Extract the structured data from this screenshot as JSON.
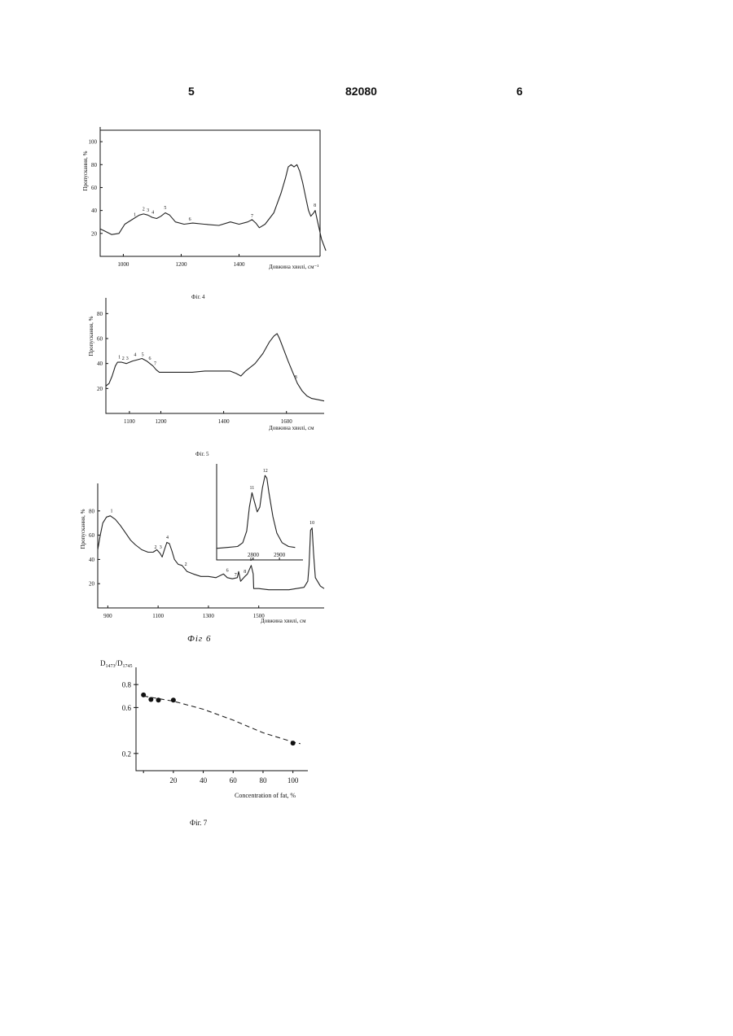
{
  "header": {
    "page_left": "5",
    "patent_number": "82080",
    "page_right": "6"
  },
  "chart_data": [
    {
      "type": "line",
      "caption": "Фіг. 4",
      "ylabel": "Пропускання, %",
      "xlabel": "Довжина хвилі, см⁻¹",
      "xlim": [
        920,
        1680
      ],
      "ylim": [
        0,
        110
      ],
      "xticks": [
        1000,
        1200,
        1400
      ],
      "yticks": [
        20,
        40,
        60,
        80,
        100
      ],
      "series": [
        {
          "points": [
            [
              920,
              24
            ],
            [
              960,
              19
            ],
            [
              985,
              20
            ],
            [
              1005,
              28
            ],
            [
              1030,
              32
            ],
            [
              1055,
              36
            ],
            [
              1070,
              37
            ],
            [
              1085,
              36
            ],
            [
              1100,
              34
            ],
            [
              1115,
              33
            ],
            [
              1130,
              35
            ],
            [
              1145,
              38
            ],
            [
              1160,
              36
            ],
            [
              1180,
              30
            ],
            [
              1210,
              28
            ],
            [
              1240,
              29
            ],
            [
              1280,
              28
            ],
            [
              1330,
              27
            ],
            [
              1370,
              30
            ],
            [
              1400,
              28
            ],
            [
              1430,
              30
            ],
            [
              1445,
              32
            ],
            [
              1458,
              29
            ],
            [
              1470,
              25
            ],
            [
              1490,
              28
            ],
            [
              1520,
              38
            ],
            [
              1545,
              55
            ],
            [
              1560,
              68
            ],
            [
              1570,
              78
            ],
            [
              1580,
              80
            ],
            [
              1590,
              78
            ],
            [
              1600,
              80
            ],
            [
              1610,
              74
            ],
            [
              1620,
              64
            ],
            [
              1630,
              52
            ],
            [
              1640,
              40
            ],
            [
              1648,
              35
            ],
            [
              1658,
              38
            ],
            [
              1663,
              40
            ],
            [
              1670,
              32
            ],
            [
              1685,
              15
            ],
            [
              1700,
              5
            ]
          ]
        }
      ],
      "peak_labels": [
        {
          "label": "1",
          "x": 1040,
          "y": 33
        },
        {
          "label": "2",
          "x": 1070,
          "y": 38
        },
        {
          "label": "3",
          "x": 1085,
          "y": 37
        },
        {
          "label": "4",
          "x": 1102,
          "y": 35
        },
        {
          "label": "5",
          "x": 1145,
          "y": 39
        },
        {
          "label": "6",
          "x": 1230,
          "y": 29
        },
        {
          "label": "7",
          "x": 1445,
          "y": 32
        },
        {
          "label": "8",
          "x": 1662,
          "y": 41
        }
      ]
    },
    {
      "type": "line",
      "caption": "Фіг. 5",
      "ylabel": "Пропускання, %",
      "xlabel": "Довжина хвилі, см",
      "xlim": [
        1025,
        1720
      ],
      "ylim": [
        0,
        90
      ],
      "xticks": [
        1100,
        1200,
        1400,
        1600
      ],
      "yticks": [
        20,
        40,
        60,
        80
      ],
      "series": [
        {
          "points": [
            [
              1025,
              22
            ],
            [
              1035,
              24
            ],
            [
              1045,
              30
            ],
            [
              1055,
              38
            ],
            [
              1062,
              41
            ],
            [
              1075,
              41
            ],
            [
              1090,
              40
            ],
            [
              1110,
              42
            ],
            [
              1125,
              43
            ],
            [
              1140,
              44
            ],
            [
              1155,
              42
            ],
            [
              1165,
              40
            ],
            [
              1175,
              38
            ],
            [
              1185,
              35
            ],
            [
              1195,
              33
            ],
            [
              1220,
              33
            ],
            [
              1260,
              33
            ],
            [
              1300,
              33
            ],
            [
              1340,
              34
            ],
            [
              1380,
              34
            ],
            [
              1420,
              34
            ],
            [
              1440,
              32
            ],
            [
              1455,
              30
            ],
            [
              1470,
              34
            ],
            [
              1500,
              40
            ],
            [
              1525,
              48
            ],
            [
              1545,
              57
            ],
            [
              1560,
              62
            ],
            [
              1570,
              64
            ],
            [
              1578,
              60
            ],
            [
              1590,
              52
            ],
            [
              1605,
              42
            ],
            [
              1620,
              33
            ],
            [
              1635,
              24
            ],
            [
              1650,
              18
            ],
            [
              1665,
              14
            ],
            [
              1680,
              12
            ],
            [
              1700,
              11
            ],
            [
              1720,
              10
            ]
          ]
        }
      ],
      "peak_labels": [
        {
          "label": "1",
          "x": 1068,
          "y": 42
        },
        {
          "label": "2",
          "x": 1080,
          "y": 41
        },
        {
          "label": "3",
          "x": 1093,
          "y": 41
        },
        {
          "label": "4",
          "x": 1118,
          "y": 44
        },
        {
          "label": "5",
          "x": 1142,
          "y": 44
        },
        {
          "label": "6",
          "x": 1165,
          "y": 41
        },
        {
          "label": "7",
          "x": 1182,
          "y": 37
        },
        {
          "label": "8",
          "x": 1630,
          "y": 26
        }
      ]
    },
    {
      "type": "line",
      "caption": "Фіг 6",
      "ylabel": "Пропускання, %",
      "xlabel": "Довжина хвилі, см",
      "xlim": [
        860,
        1760
      ],
      "ylim": [
        0,
        100
      ],
      "xticks": [
        900,
        1100,
        1300,
        1500
      ],
      "yticks": [
        20,
        40,
        60,
        80
      ],
      "series": [
        {
          "points": [
            [
              860,
              48
            ],
            [
              870,
              60
            ],
            [
              880,
              70
            ],
            [
              895,
              75
            ],
            [
              910,
              76
            ],
            [
              930,
              73
            ],
            [
              950,
              68
            ],
            [
              970,
              62
            ],
            [
              990,
              56
            ],
            [
              1010,
              52
            ],
            [
              1035,
              48
            ],
            [
              1060,
              46
            ],
            [
              1080,
              46
            ],
            [
              1095,
              48
            ],
            [
              1108,
              45
            ],
            [
              1116,
              42
            ],
            [
              1125,
              48
            ],
            [
              1135,
              54
            ],
            [
              1145,
              53
            ],
            [
              1155,
              47
            ],
            [
              1165,
              40
            ],
            [
              1180,
              36
            ],
            [
              1195,
              35
            ],
            [
              1215,
              30
            ],
            [
              1240,
              28
            ],
            [
              1270,
              26
            ],
            [
              1300,
              26
            ],
            [
              1330,
              25
            ],
            [
              1360,
              28
            ],
            [
              1375,
              25
            ],
            [
              1395,
              24
            ],
            [
              1415,
              25
            ],
            [
              1420,
              30
            ],
            [
              1428,
              22
            ],
            [
              1445,
              26
            ],
            [
              1455,
              28
            ],
            [
              1470,
              35
            ],
            [
              1478,
              28
            ],
            [
              1480,
              16
            ],
            [
              1500,
              16
            ],
            [
              1540,
              15
            ],
            [
              1580,
              15
            ],
            [
              1620,
              15
            ],
            [
              1650,
              16
            ],
            [
              1680,
              17
            ],
            [
              1695,
              22
            ],
            [
              1700,
              35
            ],
            [
              1706,
              64
            ],
            [
              1712,
              66
            ],
            [
              1718,
              45
            ],
            [
              1725,
              25
            ],
            [
              1745,
              18
            ],
            [
              1760,
              16
            ]
          ]
        }
      ],
      "peak_labels": [
        {
          "label": "1",
          "x": 915,
          "y": 77
        },
        {
          "label": "2",
          "x": 1090,
          "y": 47
        },
        {
          "label": "3",
          "x": 1110,
          "y": 47
        },
        {
          "label": "4",
          "x": 1137,
          "y": 55
        },
        {
          "label": "2",
          "x": 1210,
          "y": 33
        },
        {
          "label": "6",
          "x": 1375,
          "y": 28
        },
        {
          "label": "7",
          "x": 1408,
          "y": 24
        },
        {
          "label": "8",
          "x": 1445,
          "y": 27
        },
        {
          "label": "9",
          "x": 1470,
          "y": 37
        },
        {
          "label": "10",
          "x": 1712,
          "y": 67
        }
      ],
      "inset": {
        "xticks": [
          2800,
          2900
        ],
        "xlim": [
          2660,
          2990
        ],
        "ylim": [
          0,
          100
        ],
        "series": [
          {
            "points": [
              [
                2660,
                12
              ],
              [
                2700,
                13
              ],
              [
                2740,
                14
              ],
              [
                2760,
                18
              ],
              [
                2775,
                30
              ],
              [
                2785,
                55
              ],
              [
                2795,
                70
              ],
              [
                2805,
                60
              ],
              [
                2815,
                50
              ],
              [
                2825,
                55
              ],
              [
                2835,
                75
              ],
              [
                2845,
                88
              ],
              [
                2852,
                85
              ],
              [
                2860,
                70
              ],
              [
                2875,
                45
              ],
              [
                2890,
                28
              ],
              [
                2910,
                18
              ],
              [
                2935,
                14
              ],
              [
                2960,
                13
              ]
            ]
          }
        ],
        "peak_labels": [
          {
            "label": "11",
            "x": 2795,
            "y": 71
          },
          {
            "label": "12",
            "x": 2846,
            "y": 89
          }
        ]
      }
    },
    {
      "type": "scatter",
      "caption": "Фіг. 7",
      "ylabel": "D1473/D1745",
      "xlabel": "Concentration of fat, %",
      "xlim": [
        -5,
        110
      ],
      "ylim": [
        0.05,
        0.95
      ],
      "xticks": [
        20,
        40,
        60,
        80,
        100
      ],
      "yticks": [
        0.2,
        0.6,
        0.8
      ],
      "series": [
        {
          "points": [
            [
              0,
              0.71
            ],
            [
              5,
              0.67
            ],
            [
              10,
              0.665
            ],
            [
              20,
              0.665
            ],
            [
              100,
              0.29
            ]
          ]
        },
        {
          "style": "dashed-trend",
          "points": [
            [
              0,
              0.7
            ],
            [
              20,
              0.655
            ],
            [
              40,
              0.585
            ],
            [
              60,
              0.49
            ],
            [
              80,
              0.38
            ],
            [
              100,
              0.3
            ],
            [
              105,
              0.285
            ]
          ]
        }
      ]
    }
  ]
}
